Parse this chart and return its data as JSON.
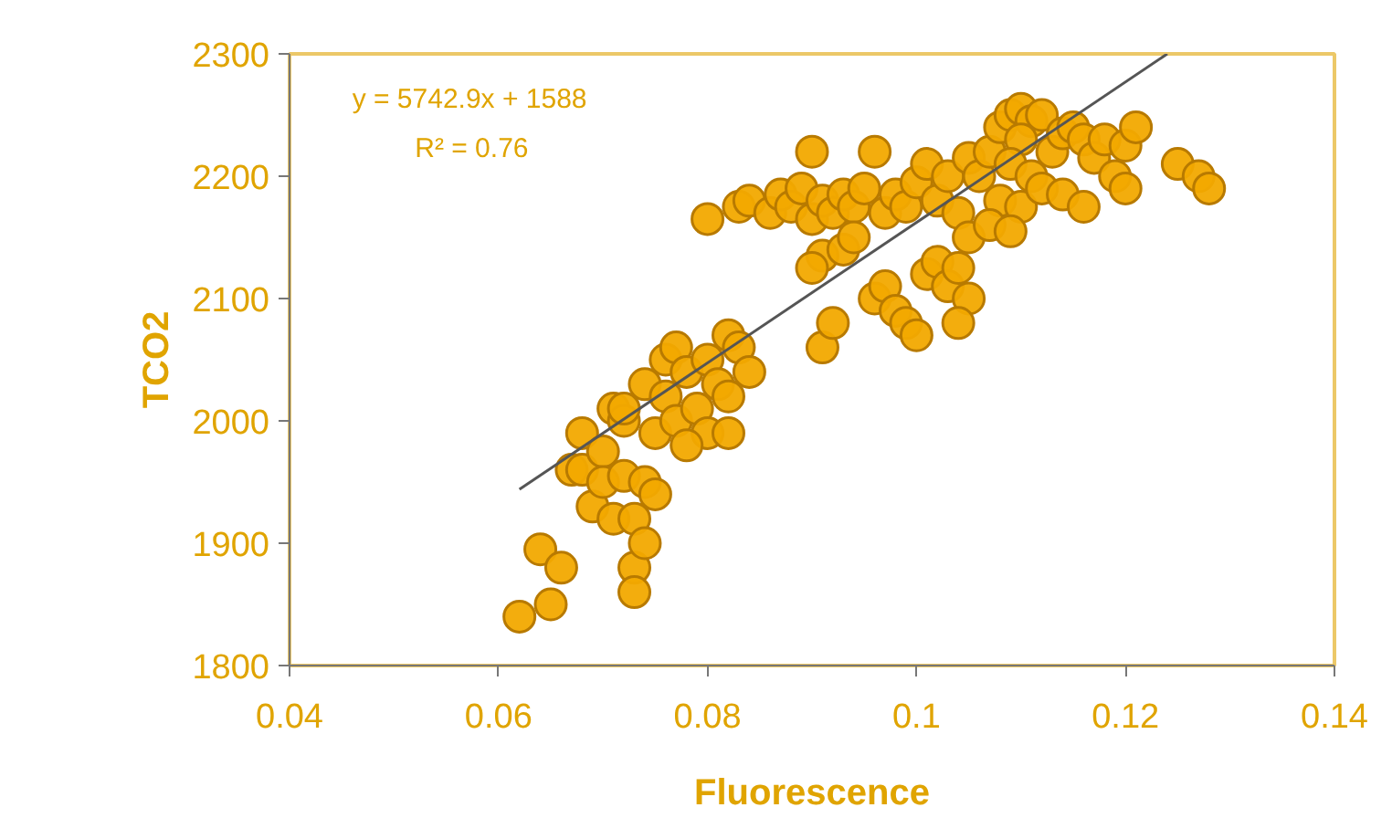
{
  "chart_data": {
    "type": "scatter",
    "xlabel": "Fluorescence",
    "ylabel": "TCO2",
    "xlim": [
      0.04,
      0.14
    ],
    "ylim": [
      1800,
      2300
    ],
    "xticks": [
      0.04,
      0.06,
      0.08,
      0.1,
      0.12,
      0.14
    ],
    "yticks": [
      1800,
      1900,
      2000,
      2100,
      2200,
      2300
    ],
    "grid": false,
    "marker": "circle",
    "annotations": [
      "y = 5742.9x + 1588",
      "R² = 0.76"
    ],
    "series": [
      {
        "color": "#f2a900",
        "x": [
          0.062,
          0.064,
          0.065,
          0.066,
          0.067,
          0.068,
          0.068,
          0.069,
          0.07,
          0.07,
          0.071,
          0.071,
          0.072,
          0.072,
          0.073,
          0.073,
          0.073,
          0.074,
          0.074,
          0.074,
          0.075,
          0.075,
          0.076,
          0.076,
          0.077,
          0.077,
          0.078,
          0.079,
          0.08,
          0.08,
          0.081,
          0.082,
          0.082,
          0.083,
          0.084,
          0.072,
          0.078,
          0.082,
          0.08,
          0.083,
          0.084,
          0.086,
          0.087,
          0.088,
          0.089,
          0.09,
          0.09,
          0.091,
          0.092,
          0.093,
          0.094,
          0.095,
          0.096,
          0.097,
          0.098,
          0.099,
          0.1,
          0.091,
          0.093,
          0.09,
          0.094,
          0.091,
          0.092,
          0.096,
          0.097,
          0.098,
          0.099,
          0.1,
          0.101,
          0.102,
          0.103,
          0.104,
          0.105,
          0.104,
          0.101,
          0.102,
          0.103,
          0.104,
          0.105,
          0.106,
          0.107,
          0.108,
          0.109,
          0.11,
          0.111,
          0.112,
          0.11,
          0.109,
          0.111,
          0.113,
          0.114,
          0.115,
          0.116,
          0.117,
          0.118,
          0.119,
          0.12,
          0.121,
          0.108,
          0.11,
          0.112,
          0.114,
          0.116,
          0.105,
          0.107,
          0.109,
          0.125,
          0.127,
          0.128,
          0.12
        ],
        "values": [
          1840,
          1895,
          1850,
          1880,
          1960,
          1990,
          1960,
          1930,
          1975,
          1950,
          2010,
          1920,
          1955,
          2000,
          1880,
          1860,
          1920,
          1900,
          2030,
          1950,
          1990,
          1940,
          2050,
          2020,
          2000,
          2060,
          2040,
          2010,
          2050,
          1990,
          2030,
          2070,
          2020,
          2060,
          2040,
          2010,
          1980,
          1990,
          2165,
          2175,
          2180,
          2170,
          2185,
          2175,
          2190,
          2220,
          2165,
          2180,
          2170,
          2185,
          2175,
          2190,
          2220,
          2170,
          2185,
          2175,
          2195,
          2135,
          2140,
          2125,
          2150,
          2060,
          2080,
          2100,
          2110,
          2090,
          2080,
          2070,
          2120,
          2130,
          2110,
          2125,
          2100,
          2080,
          2210,
          2180,
          2200,
          2170,
          2215,
          2200,
          2220,
          2240,
          2250,
          2255,
          2245,
          2250,
          2230,
          2210,
          2200,
          2220,
          2235,
          2240,
          2230,
          2215,
          2230,
          2200,
          2225,
          2240,
          2180,
          2175,
          2190,
          2185,
          2175,
          2150,
          2160,
          2155,
          2210,
          2200,
          2190,
          2190
        ]
      },
      {
        "type": "line",
        "color": "#555555",
        "marker": "none",
        "x": [
          0.062,
          0.124
        ],
        "values": [
          1944,
          2300
        ]
      }
    ]
  }
}
